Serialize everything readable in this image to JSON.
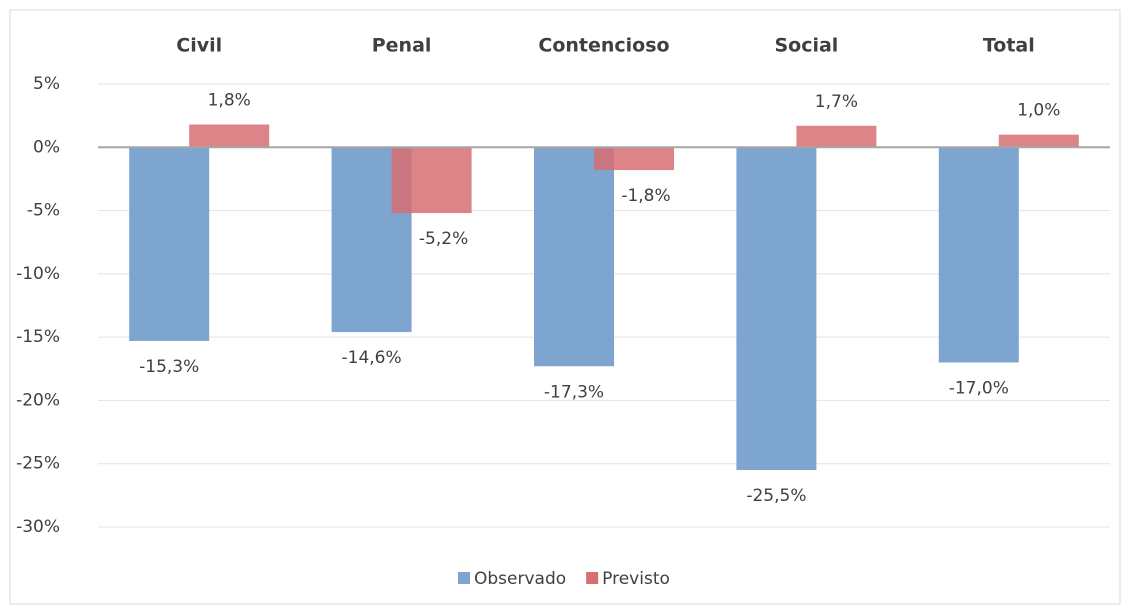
{
  "chart_data": {
    "type": "bar",
    "categories": [
      "Civil",
      "Penal",
      "Contencioso",
      "Social",
      "Total"
    ],
    "series": [
      {
        "name": "Observado",
        "color": "#7ea4d0",
        "values": [
          -15.3,
          -14.6,
          -17.3,
          -25.5,
          -17.0
        ],
        "value_labels": [
          "-15,3%",
          "-14,6%",
          "-17,3%",
          "-25,5%",
          "-17,0%"
        ]
      },
      {
        "name": "Previsto",
        "color": "#d66f72",
        "values": [
          1.8,
          -5.2,
          -1.8,
          1.7,
          1.0
        ],
        "value_labels": [
          "1,8%",
          "-5,2%",
          "-1,8%",
          "1,7%",
          "1,0%"
        ]
      }
    ],
    "ylim": [
      -30,
      5
    ],
    "yticks": [
      {
        "value": -30,
        "label": "-30%"
      },
      {
        "value": -25,
        "label": "-25%"
      },
      {
        "value": -20,
        "label": "-20%"
      },
      {
        "value": -15,
        "label": "-15%"
      },
      {
        "value": -10,
        "label": "-10%"
      },
      {
        "value": -5,
        "label": "-5%"
      },
      {
        "value": 0,
        "label": "0%"
      },
      {
        "value": 5,
        "label": "5%"
      }
    ],
    "grid": true,
    "legend": "bottom"
  }
}
